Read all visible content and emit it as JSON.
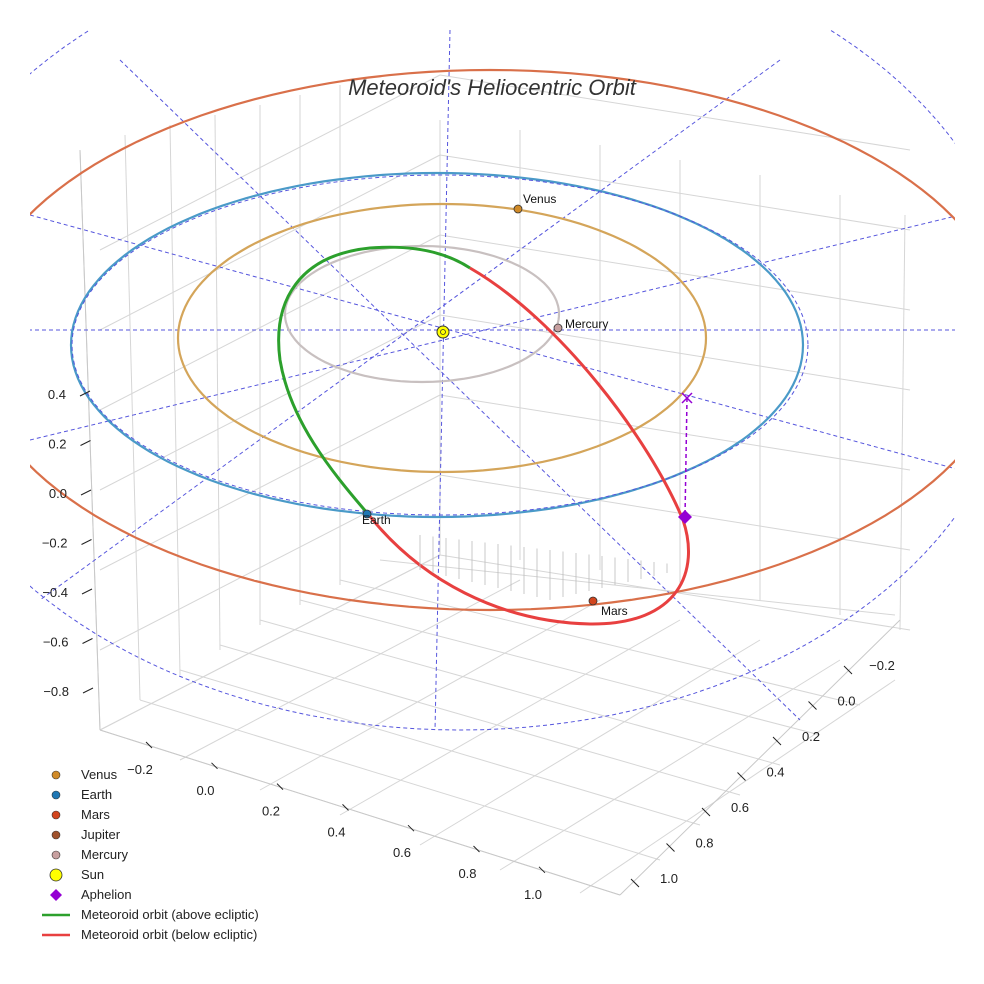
{
  "chart_data": {
    "type": "scatter",
    "projection": "3d",
    "title": "Meteoroid's Heliocentric Orbit",
    "axes": {
      "x": {
        "ticks": [
          "−0.2",
          "0.0",
          "0.2",
          "0.4",
          "0.6",
          "0.8",
          "1.0"
        ]
      },
      "y": {
        "ticks": [
          "−0.2",
          "0.0",
          "0.2",
          "0.4",
          "0.6",
          "0.8",
          "1.0"
        ]
      },
      "z": {
        "ticks": [
          "0.4",
          "0.2",
          "0.0",
          "−0.2",
          "−0.4",
          "−0.6",
          "−0.8"
        ]
      }
    },
    "grid": true,
    "planets": [
      {
        "name": "Venus",
        "color": "#d08a28",
        "label": "Venus",
        "orbit_color": "#d4a55a"
      },
      {
        "name": "Earth",
        "color": "#1f77b4",
        "label": "Earth",
        "orbit_color": "#4a9ac8"
      },
      {
        "name": "Mars",
        "color": "#d2451e",
        "label": "Mars",
        "orbit_color": "#d9704a"
      },
      {
        "name": "Jupiter",
        "color": "#a0522d",
        "label": "",
        "orbit_color": "#b07050"
      },
      {
        "name": "Mercury",
        "color": "#c8a0a0",
        "label": "Mercury",
        "orbit_color": "#c8c0c0"
      }
    ],
    "sun": {
      "name": "Sun",
      "color": "#ffff00"
    },
    "aphelion": {
      "name": "Aphelion",
      "color": "#9400d3"
    },
    "meteoroid_orbit": [
      {
        "name": "Meteoroid orbit (above ecliptic)",
        "color": "#2ca02c"
      },
      {
        "name": "Meteoroid orbit (below ecliptic)",
        "color": "#e84040"
      }
    ],
    "reference_color": "#5555dd",
    "legend": {
      "placement": "bottom-left",
      "entries": [
        {
          "label": "Venus",
          "marker": "dot",
          "color": "#d08a28"
        },
        {
          "label": "Earth",
          "marker": "dot",
          "color": "#1f77b4"
        },
        {
          "label": "Mars",
          "marker": "dot",
          "color": "#d2451e"
        },
        {
          "label": "Jupiter",
          "marker": "dot",
          "color": "#a0522d"
        },
        {
          "label": "Mercury",
          "marker": "dot",
          "color": "#c8a0a0"
        },
        {
          "label": "Sun",
          "marker": "big-dot",
          "color": "#ffff00"
        },
        {
          "label": "Aphelion",
          "marker": "diamond",
          "color": "#9400d3"
        },
        {
          "label": "Meteoroid orbit (above ecliptic)",
          "marker": "line",
          "color": "#2ca02c"
        },
        {
          "label": "Meteoroid orbit (below ecliptic)",
          "marker": "line",
          "color": "#e84040"
        }
      ]
    }
  }
}
